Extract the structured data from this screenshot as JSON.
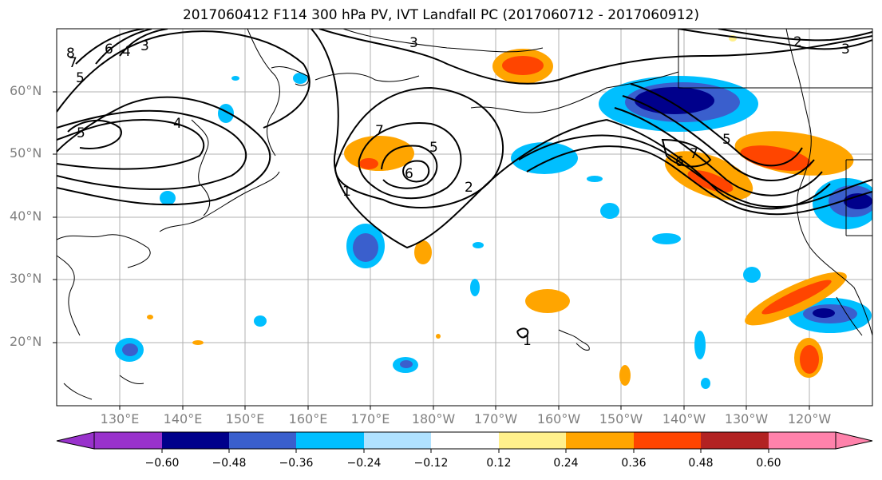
{
  "title": "2017060412 F114 300 hPa PV, IVT Landfall PC (2017060712 - 2017060912)",
  "lat_labels": [
    "60°N",
    "50°N",
    "40°N",
    "30°N",
    "20°N"
  ],
  "lon_labels": [
    "130°E",
    "140°E",
    "150°E",
    "160°E",
    "170°E",
    "180°W",
    "170°W",
    "160°W",
    "150°W",
    "140°W",
    "130°W",
    "120°W"
  ],
  "colorbar": {
    "ticks": [
      "−0.60",
      "−0.48",
      "−0.36",
      "−0.24",
      "−0.12",
      "0.12",
      "0.24",
      "0.36",
      "0.48",
      "0.60"
    ],
    "colors": [
      "#9932cc",
      "#00008b",
      "#3a5fcd",
      "#00bfff",
      "#b0e2ff",
      "#ffffff",
      "#fff08c",
      "#ffa500",
      "#ff4500",
      "#b22222",
      "#ff82ab"
    ]
  },
  "contour_labels": [
    "8",
    "7",
    "6",
    "4",
    "3",
    "5",
    "5",
    "4",
    "3",
    "1",
    "2",
    "5",
    "6",
    "7",
    "7",
    "6",
    "5",
    "2",
    "3",
    "1"
  ],
  "colors": {
    "grid": "#b0b0b0",
    "label": "#808080"
  }
}
